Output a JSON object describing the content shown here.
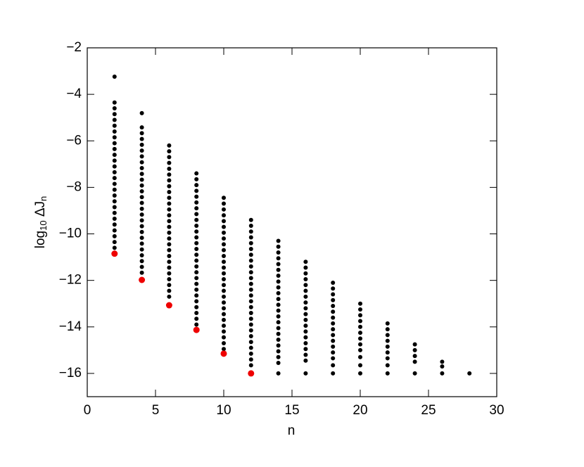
{
  "chart_data": {
    "type": "scatter",
    "xlabel": "n",
    "ylabel": [
      "log",
      "10",
      " ΔJ",
      "n"
    ],
    "xlim": [
      0,
      30
    ],
    "ylim": [
      -17,
      -2
    ],
    "xticks": [
      0,
      5,
      10,
      15,
      20,
      25,
      30
    ],
    "yticks": [
      {
        "value": -16,
        "label": "−16"
      },
      {
        "value": -14,
        "label": "−14"
      },
      {
        "value": -12,
        "label": "−12"
      },
      {
        "value": -10,
        "label": "−10"
      },
      {
        "value": -8,
        "label": "−8"
      },
      {
        "value": -6,
        "label": "−6"
      },
      {
        "value": -4,
        "label": "−4"
      },
      {
        "value": -2,
        "label": "−2"
      }
    ],
    "series": [
      {
        "color": "#000000",
        "x": 2,
        "values": [
          -3.24,
          -4.35,
          -4.6,
          -4.85,
          -5.1,
          -5.35,
          -5.6,
          -5.85,
          -6.1,
          -6.35,
          -6.6,
          -6.85,
          -7.1,
          -7.35,
          -7.6,
          -7.85,
          -8.1,
          -8.35,
          -8.6,
          -8.85,
          -9.1,
          -9.35,
          -9.6,
          -9.85,
          -10.1,
          -10.35,
          -10.6
        ]
      },
      {
        "color": "#000000",
        "x": 4,
        "values": [
          -4.81,
          -5.42,
          -5.67,
          -5.92,
          -6.17,
          -6.42,
          -6.67,
          -6.92,
          -7.17,
          -7.42,
          -7.67,
          -7.92,
          -8.17,
          -8.42,
          -8.67,
          -8.92,
          -9.17,
          -9.42,
          -9.67,
          -9.92,
          -10.17,
          -10.42,
          -10.67,
          -10.92,
          -11.17,
          -11.42,
          -11.67
        ]
      },
      {
        "color": "#000000",
        "x": 6,
        "values": [
          -6.2,
          -6.45,
          -6.7,
          -6.95,
          -7.2,
          -7.45,
          -7.7,
          -7.95,
          -8.2,
          -8.45,
          -8.7,
          -8.95,
          -9.2,
          -9.45,
          -9.7,
          -9.95,
          -10.2,
          -10.45,
          -10.7,
          -10.95,
          -11.2,
          -11.45,
          -11.7,
          -11.95,
          -12.2,
          -12.45,
          -12.7
        ]
      },
      {
        "color": "#000000",
        "x": 8,
        "values": [
          -7.4,
          -7.65,
          -7.9,
          -8.15,
          -8.4,
          -8.65,
          -8.9,
          -9.15,
          -9.4,
          -9.65,
          -9.9,
          -10.15,
          -10.4,
          -10.65,
          -10.9,
          -11.15,
          -11.4,
          -11.65,
          -11.9,
          -12.15,
          -12.4,
          -12.65,
          -12.9,
          -13.15,
          -13.4,
          -13.65,
          -13.9
        ]
      },
      {
        "color": "#000000",
        "x": 10,
        "values": [
          -8.45,
          -8.7,
          -8.95,
          -9.2,
          -9.45,
          -9.7,
          -9.95,
          -10.2,
          -10.45,
          -10.7,
          -10.95,
          -11.2,
          -11.45,
          -11.7,
          -11.95,
          -12.2,
          -12.45,
          -12.7,
          -12.95,
          -13.2,
          -13.45,
          -13.7,
          -13.95,
          -14.2,
          -14.45,
          -14.7,
          -14.95
        ]
      },
      {
        "color": "#000000",
        "x": 12,
        "values": [
          -9.4,
          -9.65,
          -9.9,
          -10.15,
          -10.4,
          -10.65,
          -10.9,
          -11.15,
          -11.4,
          -11.65,
          -11.9,
          -12.15,
          -12.4,
          -12.65,
          -12.9,
          -13.15,
          -13.4,
          -13.65,
          -13.9,
          -14.15,
          -14.4,
          -14.65,
          -14.9,
          -15.15,
          -15.4,
          -15.65
        ]
      },
      {
        "color": "#000000",
        "x": 14,
        "values": [
          -10.3,
          -10.55,
          -10.8,
          -11.05,
          -11.3,
          -11.55,
          -11.8,
          -12.05,
          -12.3,
          -12.55,
          -12.8,
          -13.05,
          -13.3,
          -13.55,
          -13.8,
          -14.05,
          -14.3,
          -14.55,
          -14.8,
          -15.05,
          -15.3,
          -15.55,
          -16
        ]
      },
      {
        "color": "#000000",
        "x": 16,
        "values": [
          -11.2,
          -11.45,
          -11.7,
          -11.95,
          -12.2,
          -12.45,
          -12.7,
          -12.95,
          -13.2,
          -13.45,
          -13.7,
          -13.95,
          -14.2,
          -14.45,
          -14.7,
          -14.95,
          -15.2,
          -15.45,
          -16
        ]
      },
      {
        "color": "#000000",
        "x": 18,
        "values": [
          -12.1,
          -12.35,
          -12.6,
          -12.85,
          -13.1,
          -13.35,
          -13.6,
          -13.85,
          -14.1,
          -14.35,
          -14.6,
          -14.85,
          -15.1,
          -15.35,
          -15.65,
          -16
        ]
      },
      {
        "color": "#000000",
        "x": 20,
        "values": [
          -13,
          -13.25,
          -13.5,
          -13.75,
          -14,
          -14.25,
          -14.5,
          -14.75,
          -15,
          -15.3,
          -15.65,
          -16
        ]
      },
      {
        "color": "#000000",
        "x": 22,
        "values": [
          -13.85,
          -14.1,
          -14.35,
          -14.6,
          -14.85,
          -15.1,
          -15.35,
          -15.65,
          -16
        ]
      },
      {
        "color": "#000000",
        "x": 24,
        "values": [
          -14.75,
          -15,
          -15.25,
          -15.5,
          -16
        ]
      },
      {
        "color": "#000000",
        "x": 26,
        "values": [
          -15.5,
          -15.7,
          -16
        ]
      },
      {
        "color": "#000000",
        "x": 28,
        "values": [
          -16
        ]
      },
      {
        "color": "#ee0000",
        "x": [
          2,
          4,
          6,
          8,
          10,
          12
        ],
        "values": [
          -10.85,
          -11.98,
          -13.07,
          -14.13,
          -15.15,
          -16
        ]
      }
    ]
  }
}
